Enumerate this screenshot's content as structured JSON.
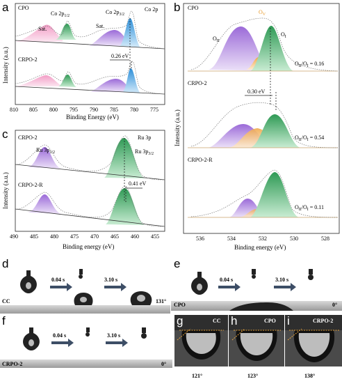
{
  "panels": {
    "a": {
      "tag": "a",
      "xlabel": "Binding Energy (eV)",
      "ylabel": "Intensity (a.u.)",
      "ticks": [
        "810",
        "805",
        "800",
        "795",
        "790",
        "785",
        "780",
        "775"
      ],
      "top": {
        "name": "CPO",
        "labels": [
          "Sat.",
          "Co 2p",
          "1/2",
          "Sat.",
          "Co 2p",
          "3/2",
          "Co 2p"
        ]
      },
      "bottom": {
        "name": "CRPO-2",
        "shift": "0.26 eV"
      }
    },
    "b": {
      "tag": "b",
      "xlabel": "Binding energy (eV)",
      "ylabel": "Intensity (a.u.)",
      "ticks": [
        "536",
        "534",
        "532",
        "530",
        "528"
      ],
      "samples": [
        {
          "name": "CPO",
          "ratio": "O",
          "ratio_sub1": "II",
          "ratio_mid": "/O",
          "ratio_sub2": "I",
          "ratio_val": " = 0.16"
        },
        {
          "name": "CRPO-2",
          "ratio": "O",
          "ratio_sub1": "II",
          "ratio_mid": "/O",
          "ratio_sub2": "I",
          "ratio_val": " = 0.54",
          "shift": "0.30 eV"
        },
        {
          "name": "CRPO-2-R",
          "ratio": "O",
          "ratio_sub1": "II",
          "ratio_mid": "/O",
          "ratio_sub2": "I",
          "ratio_val": " = 0.11"
        }
      ],
      "peaks": {
        "oii": "O",
        "oii_sub": "II",
        "ov": "O",
        "ov_sub": "V",
        "oi": "O",
        "oi_sub": "I"
      }
    },
    "c": {
      "tag": "c",
      "xlabel": "Binding energy (eV)",
      "ylabel": "Intensity (a.u.)",
      "ticks": [
        "490",
        "485",
        "480",
        "475",
        "470",
        "465",
        "460",
        "455"
      ],
      "top": {
        "name": "CRPO-2",
        "ru3p": "Ru 3p",
        "ru12": "Ru 3p",
        "ru12_sub": "1/2",
        "ru32": "Ru 3p",
        "ru32_sub": "3/2"
      },
      "bottom": {
        "name": "CRPO-2-R",
        "shift": "0.41 eV"
      }
    },
    "d": {
      "tag": "d",
      "sample": "CC",
      "t1": "0.04 s",
      "t2": "3.10 s",
      "angle": "131°"
    },
    "e": {
      "tag": "e",
      "sample": "CPO",
      "t1": "0.04 s",
      "t2": "3.10 s",
      "angle": "0°"
    },
    "f": {
      "tag": "f",
      "sample": "CRPO-2",
      "t1": "0.04 s",
      "t2": "3.10 s",
      "angle": "0°"
    },
    "g": {
      "tag": "g",
      "sample": "CC",
      "angle": "121°"
    },
    "h": {
      "tag": "h",
      "sample": "CPO",
      "angle": "123°"
    },
    "i": {
      "tag": "i",
      "sample": "CRPO-2",
      "angle": "138°"
    }
  },
  "colors": {
    "pink": "#f3a6c8",
    "green": "#4caf6a",
    "purple": "#b48ae0",
    "blue": "#4aa3e0",
    "orange": "#f5c27a",
    "teal": "#6cc0a8"
  },
  "chart_data": [
    {
      "type": "line",
      "title": "",
      "xlabel": "Binding Energy (eV)",
      "xlim": [
        810,
        775
      ],
      "series": [
        {
          "name": "CPO",
          "peaks": [
            {
              "label": "Sat.",
              "x": 802.5
            },
            {
              "label": "Co 2p1/2",
              "x": 797
            },
            {
              "label": "Sat.",
              "x": 786
            },
            {
              "label": "Co 2p3/2",
              "x": 781.5
            }
          ]
        },
        {
          "name": "CRPO-2",
          "peaks": [
            {
              "label": "Sat.",
              "x": 802.5
            },
            {
              "label": "Co 2p1/2",
              "x": 797
            },
            {
              "label": "Sat.",
              "x": 786
            },
            {
              "label": "Co 2p3/2",
              "x": 781.3
            }
          ]
        }
      ]
    },
    {
      "type": "line",
      "xlabel": "Binding energy (eV)",
      "xlim": [
        537,
        527
      ],
      "series": [
        {
          "name": "CPO",
          "OII_OI": 0.16
        },
        {
          "name": "CRPO-2",
          "OII_OI": 0.54
        },
        {
          "name": "CRPO-2-R",
          "OII_OI": 0.11
        }
      ]
    },
    {
      "type": "line",
      "xlabel": "Binding energy (eV)",
      "xlim": [
        491,
        455
      ],
      "series": [
        {
          "name": "CRPO-2",
          "peaks": [
            {
              "label": "Ru 3p1/2",
              "x": 485
            },
            {
              "label": "Ru 3p3/2",
              "x": 463
            }
          ]
        },
        {
          "name": "CRPO-2-R",
          "peaks": [
            {
              "label": "Ru 3p1/2",
              "x": 485
            },
            {
              "label": "Ru 3p3/2",
              "x": 463.4
            }
          ]
        }
      ]
    }
  ]
}
